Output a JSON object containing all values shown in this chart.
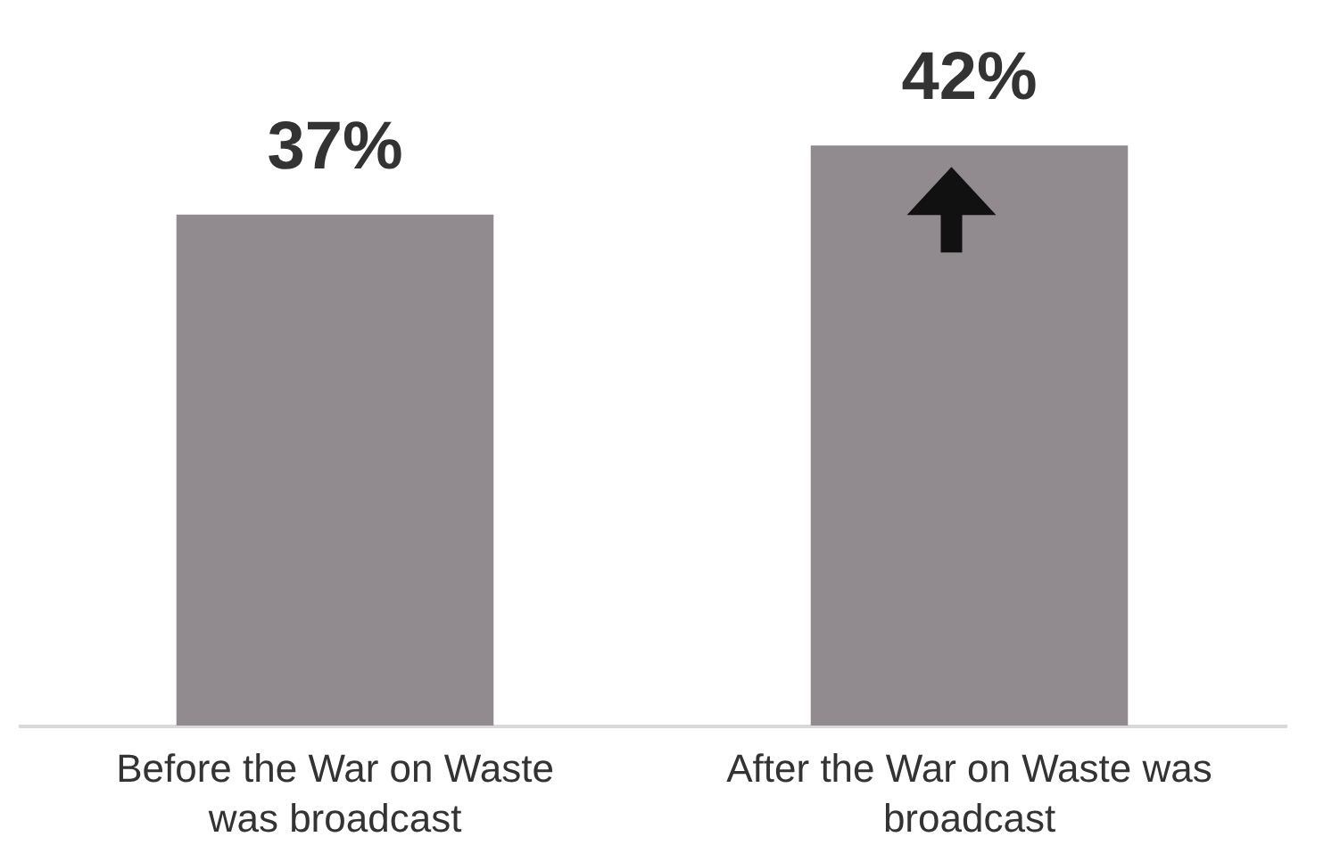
{
  "chart_data": {
    "type": "bar",
    "categories": [
      "Before the War on Waste was broadcast",
      "After the War on Waste was broadcast"
    ],
    "values": [
      37,
      42
    ],
    "value_labels": [
      "37%",
      "42%"
    ],
    "color": "#918b90",
    "grid": false
  }
}
